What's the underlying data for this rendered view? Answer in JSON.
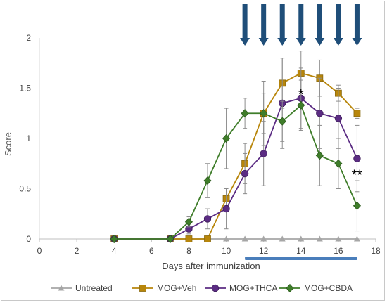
{
  "chart_data": {
    "type": "line",
    "title": "",
    "xlabel": "Days after immunization",
    "ylabel": "Score",
    "xlim": [
      0,
      18
    ],
    "ylim": [
      0,
      2
    ],
    "x_ticks": [
      0,
      2,
      4,
      6,
      8,
      10,
      12,
      14,
      16,
      18
    ],
    "y_ticks": [
      0,
      0.5,
      1,
      1.5,
      2
    ],
    "y_tick_labels": [
      "0",
      "0.5",
      "1",
      "1.5",
      "2"
    ],
    "grid": false,
    "legend_position": "bottom",
    "series": [
      {
        "name": "Untreated",
        "color": "#a6a6a6",
        "marker": "triangle",
        "x": [
          4,
          7,
          8,
          9,
          10,
          11,
          12,
          13,
          14,
          15,
          16,
          17
        ],
        "y": [
          0,
          0,
          0,
          0,
          0,
          0,
          0,
          0,
          0,
          0,
          0,
          0
        ],
        "err": [
          0,
          0,
          0,
          0,
          0,
          0,
          0,
          0,
          0,
          0,
          0,
          0
        ]
      },
      {
        "name": "MOG+Veh",
        "color": "#b8860b",
        "marker": "square",
        "x": [
          4,
          7,
          8,
          9,
          10,
          11,
          12,
          13,
          14,
          15,
          16,
          17
        ],
        "y": [
          0,
          0,
          0,
          0,
          0.4,
          0.75,
          1.25,
          1.55,
          1.65,
          1.6,
          1.45,
          1.25
        ],
        "err": [
          0,
          0,
          0,
          0,
          0.1,
          0.2,
          0.2,
          0.25,
          0.22,
          0.18,
          0.08,
          0.05
        ]
      },
      {
        "name": "MOG+THCA",
        "color": "#5b2c83",
        "marker": "circle",
        "x": [
          4,
          7,
          8,
          9,
          10,
          11,
          12,
          13,
          14,
          15,
          16,
          17
        ],
        "y": [
          0,
          0,
          0.1,
          0.2,
          0.3,
          0.65,
          0.85,
          1.35,
          1.4,
          1.25,
          1.2,
          0.8
        ],
        "err": [
          0,
          0,
          0.05,
          0.1,
          0.2,
          0.2,
          0.32,
          0.45,
          0.3,
          0.35,
          0.3,
          0.33
        ]
      },
      {
        "name": "MOG+CBDA",
        "color": "#3f7d2a",
        "marker": "diamond",
        "x": [
          4,
          7,
          8,
          9,
          10,
          11,
          12,
          13,
          14,
          15,
          16,
          17
        ],
        "y": [
          0,
          0,
          0.17,
          0.58,
          1.0,
          1.25,
          1.25,
          1.17,
          1.33,
          0.83,
          0.75,
          0.33
        ],
        "err": [
          0,
          0,
          0.05,
          0.17,
          0.3,
          0.15,
          0.32,
          0.2,
          0.25,
          0.3,
          0.25,
          0.25
        ]
      }
    ],
    "annotations": [
      {
        "text": "*",
        "x": 14,
        "y": 1.46
      },
      {
        "text": "**",
        "x": 17,
        "y": 0.66
      }
    ],
    "treatment_arrows": {
      "color": "#1f4e79",
      "days": [
        11,
        12,
        13,
        14,
        15,
        16,
        17
      ]
    },
    "treatment_bar": {
      "color": "#4a7ebb",
      "x_start": 11,
      "x_end": 17
    }
  }
}
